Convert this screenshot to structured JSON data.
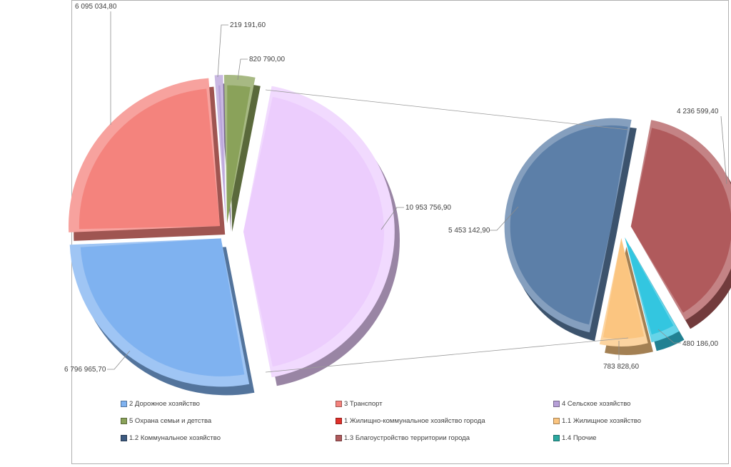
{
  "chart_data": {
    "type": "pie",
    "variant": "bar-of-pie (pie of pie) 3D exploded",
    "main_pie": {
      "slices": [
        {
          "category": "2 Дорожное хозяйство",
          "value": 6796965.7,
          "label": "6 796 965,70",
          "color": "#7fb2f0"
        },
        {
          "category": "3 Транспорт",
          "value": 6095034.8,
          "label": "6 095 034,80",
          "color": "#f4837d"
        },
        {
          "category": "4 Сельское хозяйство",
          "value": 219191.6,
          "label": "219 191,60",
          "color": "#b7a0d8"
        },
        {
          "category": "5 Охрана семьи и детства",
          "value": 820790.0,
          "label": "820 790,00",
          "color": "#8aa25a"
        },
        {
          "category": "1 Жилищно-коммунальное  хозяйство города",
          "value": 10953756.9,
          "label": "10 953 756,90",
          "color": "#eccdfd"
        }
      ]
    },
    "secondary_pie": {
      "slices": [
        {
          "category": "1.2 Коммунальное хозяйство",
          "value": 5453142.9,
          "label": "5 453 142,90",
          "color": "#5c7fa8"
        },
        {
          "category": "1.3 Благоустройство территории города",
          "value": 4236599.4,
          "label": "4 236 599,40",
          "color": "#b05a5c"
        },
        {
          "category": "1.4 Прочие",
          "value": 480186.0,
          "label": "480 186,00",
          "color": "#33c6e0"
        },
        {
          "category": "1.1 Жилищное хозяйство",
          "value": 783828.6,
          "label": "783 828,60",
          "color": "#fbc580"
        }
      ]
    },
    "legend": {
      "placement": "bottom",
      "items": [
        {
          "label": "2 Дорожное хозяйство",
          "color": "#7fb2f0"
        },
        {
          "label": "3 Транспорт",
          "color": "#f4837d"
        },
        {
          "label": "4 Сельское хозяйство",
          "color": "#b7a0d8"
        },
        {
          "label": "5 Охрана семьи и детства",
          "color": "#8aa25a"
        },
        {
          "label": "1 Жилищно-коммунальное  хозяйство города",
          "color": "#e0302a"
        },
        {
          "label": "1.1 Жилищное хозяйство",
          "color": "#fbc580"
        },
        {
          "label": "1.2 Коммунальное хозяйство",
          "color": "#3d5a80"
        },
        {
          "label": "1.3 Благоустройство территории города",
          "color": "#b05a5c"
        },
        {
          "label": "1.4 Прочие",
          "color": "#2aa8a0"
        }
      ]
    }
  }
}
